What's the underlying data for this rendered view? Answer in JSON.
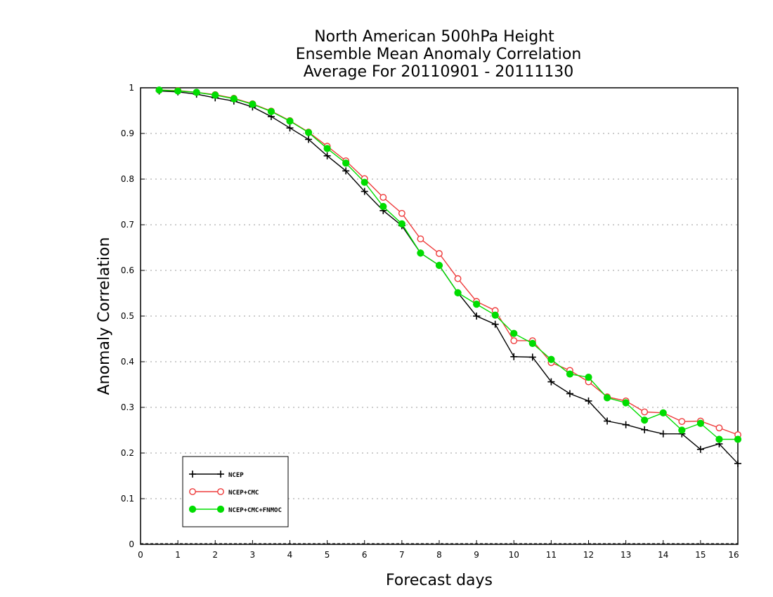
{
  "chart_data": {
    "type": "line",
    "title": [
      "North American 500hPa Height",
      "Ensemble Mean Anomaly Correlation",
      "Average For 20110901 - 20111130"
    ],
    "xlabel": "Forecast days",
    "ylabel": "Anomaly Correlation",
    "xlim": [
      0,
      16
    ],
    "ylim": [
      0,
      1
    ],
    "xticks": [
      "0",
      "1",
      "2",
      "3",
      "4",
      "5",
      "6",
      "7",
      "8",
      "9",
      "10",
      "11",
      "12",
      "13",
      "14",
      "15",
      "16"
    ],
    "yticks": [
      "0",
      "0.1",
      "0.2",
      "0.3",
      "0.4",
      "0.5",
      "0.6",
      "0.7",
      "0.8",
      "0.9",
      "1"
    ],
    "grid": "horizontal-dotted",
    "legend_position": "bottom-left",
    "x": [
      0.5,
      1,
      1.5,
      2,
      2.5,
      3,
      3.5,
      4,
      4.5,
      5,
      5.5,
      6,
      6.5,
      7,
      7.5,
      8,
      8.5,
      9,
      9.5,
      10,
      10.5,
      11,
      11.5,
      12,
      12.5,
      13,
      13.5,
      14,
      14.5,
      15,
      15.5,
      16
    ],
    "series": [
      {
        "name": "NCEP",
        "color": "#000000",
        "marker": "plus",
        "values": [
          0.993,
          0.991,
          0.986,
          0.978,
          0.971,
          0.958,
          0.937,
          0.912,
          0.887,
          0.851,
          0.818,
          0.773,
          0.731,
          0.698,
          0.638,
          0.611,
          0.551,
          0.5,
          0.482,
          0.411,
          0.41,
          0.356,
          0.33,
          0.314,
          0.27,
          0.262,
          0.251,
          0.242,
          0.242,
          0.208,
          0.22,
          0.177
        ]
      },
      {
        "name": "NCEP+CMC",
        "color": "#ee3a3a",
        "marker": "open-circle",
        "values": [
          0.995,
          0.994,
          0.99,
          0.985,
          0.977,
          0.965,
          0.949,
          0.928,
          0.903,
          0.872,
          0.84,
          0.801,
          0.76,
          0.725,
          0.669,
          0.637,
          0.582,
          0.532,
          0.512,
          0.446,
          0.446,
          0.398,
          0.381,
          0.356,
          0.323,
          0.314,
          0.29,
          0.288,
          0.269,
          0.27,
          0.255,
          0.24
        ]
      },
      {
        "name": "NCEP+CMC+FNMOC",
        "color": "#00dd00",
        "marker": "filled-circle",
        "values": [
          0.995,
          0.993,
          0.99,
          0.984,
          0.976,
          0.964,
          0.948,
          0.927,
          0.902,
          0.867,
          0.835,
          0.793,
          0.74,
          0.702,
          0.638,
          0.611,
          0.551,
          0.526,
          0.502,
          0.462,
          0.44,
          0.405,
          0.373,
          0.366,
          0.321,
          0.31,
          0.272,
          0.288,
          0.25,
          0.265,
          0.23,
          0.23
        ]
      }
    ]
  }
}
